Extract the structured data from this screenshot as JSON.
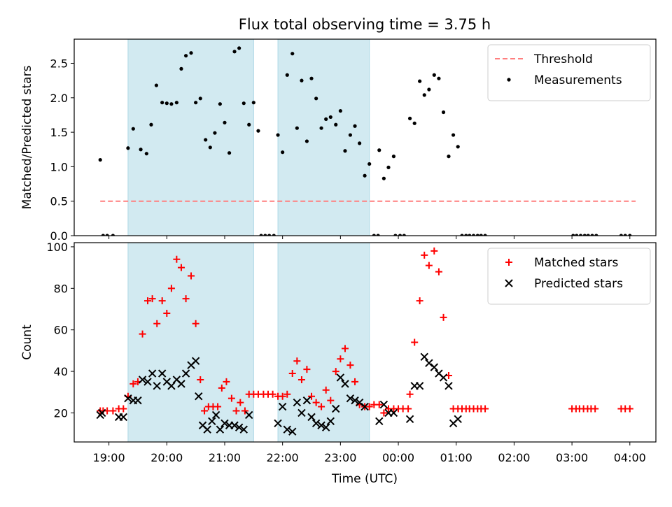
{
  "title": "Flux total observing time = 3.75 h",
  "xlabel": "Time (UTC)",
  "x_ticks": [
    "19:00",
    "20:00",
    "21:00",
    "22:00",
    "23:00",
    "00:00",
    "01:00",
    "02:00",
    "03:00",
    "04:00"
  ],
  "colors": {
    "shade": "#add8e6",
    "threshold": "#ff7f7f",
    "matched": "#ff0000",
    "predicted": "#000000",
    "measurement": "#000000"
  },
  "chart_data": [
    {
      "type": "scatter",
      "ylabel": "Matched/Predicted stars",
      "x_unit": "hours from 19:00 UTC",
      "xlim": [
        -0.6,
        9.45
      ],
      "ylim": [
        0,
        2.85
      ],
      "y_ticks": [
        "0.0",
        "0.5",
        "1.0",
        "1.5",
        "2.0",
        "2.5"
      ],
      "shaded_intervals": [
        [
          0.33,
          2.5
        ],
        [
          2.92,
          4.5
        ]
      ],
      "legend": {
        "position": "top-right",
        "entries": [
          "Threshold",
          "Measurements"
        ]
      },
      "threshold": {
        "name": "Threshold",
        "x": [
          -0.15,
          9.1
        ],
        "y": 0.5,
        "style": "dashed"
      },
      "series": [
        {
          "name": "Measurements",
          "points": [
            [
              -0.15,
              1.1
            ],
            [
              -0.1,
              0.0
            ],
            [
              -0.03,
              0.0
            ],
            [
              0.07,
              0.0
            ],
            [
              0.33,
              1.27
            ],
            [
              0.42,
              1.55
            ],
            [
              0.55,
              1.25
            ],
            [
              0.65,
              1.19
            ],
            [
              0.73,
              1.61
            ],
            [
              0.82,
              2.18
            ],
            [
              0.92,
              1.93
            ],
            [
              1.0,
              1.92
            ],
            [
              1.08,
              1.91
            ],
            [
              1.17,
              1.93
            ],
            [
              1.25,
              2.42
            ],
            [
              1.33,
              2.61
            ],
            [
              1.42,
              2.65
            ],
            [
              1.5,
              1.93
            ],
            [
              1.58,
              1.99
            ],
            [
              1.67,
              1.39
            ],
            [
              1.75,
              1.28
            ],
            [
              1.83,
              1.49
            ],
            [
              1.92,
              1.91
            ],
            [
              2.0,
              1.64
            ],
            [
              2.08,
              1.2
            ],
            [
              2.17,
              2.67
            ],
            [
              2.25,
              2.72
            ],
            [
              2.33,
              1.92
            ],
            [
              2.42,
              1.61
            ],
            [
              2.5,
              1.93
            ],
            [
              2.58,
              1.52
            ],
            [
              2.63,
              0.0
            ],
            [
              2.7,
              0.0
            ],
            [
              2.77,
              0.0
            ],
            [
              2.85,
              0.0
            ],
            [
              2.92,
              1.46
            ],
            [
              3.0,
              1.21
            ],
            [
              3.08,
              2.33
            ],
            [
              3.17,
              2.64
            ],
            [
              3.25,
              1.56
            ],
            [
              3.33,
              2.25
            ],
            [
              3.42,
              1.37
            ],
            [
              3.5,
              2.28
            ],
            [
              3.58,
              1.99
            ],
            [
              3.67,
              1.56
            ],
            [
              3.75,
              1.69
            ],
            [
              3.83,
              1.72
            ],
            [
              3.92,
              1.61
            ],
            [
              4.0,
              1.81
            ],
            [
              4.08,
              1.23
            ],
            [
              4.17,
              1.46
            ],
            [
              4.25,
              1.59
            ],
            [
              4.33,
              1.34
            ],
            [
              4.42,
              0.87
            ],
            [
              4.5,
              1.04
            ],
            [
              4.58,
              0.0
            ],
            [
              4.65,
              0.0
            ],
            [
              4.67,
              1.24
            ],
            [
              4.75,
              0.83
            ],
            [
              4.83,
              0.99
            ],
            [
              4.92,
              1.15
            ],
            [
              4.95,
              0.0
            ],
            [
              5.03,
              0.0
            ],
            [
              5.1,
              0.0
            ],
            [
              5.2,
              1.7
            ],
            [
              5.28,
              1.63
            ],
            [
              5.37,
              2.24
            ],
            [
              5.45,
              2.04
            ],
            [
              5.53,
              2.12
            ],
            [
              5.62,
              2.33
            ],
            [
              5.7,
              2.28
            ],
            [
              5.78,
              1.79
            ],
            [
              5.87,
              1.15
            ],
            [
              5.95,
              1.46
            ],
            [
              6.03,
              1.29
            ],
            [
              6.1,
              0.0
            ],
            [
              6.17,
              0.0
            ],
            [
              6.23,
              0.0
            ],
            [
              6.3,
              0.0
            ],
            [
              6.37,
              0.0
            ],
            [
              6.43,
              0.0
            ],
            [
              6.5,
              0.0
            ],
            [
              8.02,
              0.0
            ],
            [
              8.08,
              0.0
            ],
            [
              8.15,
              0.0
            ],
            [
              8.22,
              0.0
            ],
            [
              8.28,
              0.0
            ],
            [
              8.35,
              0.0
            ],
            [
              8.42,
              0.0
            ],
            [
              8.85,
              0.0
            ],
            [
              8.92,
              0.0
            ],
            [
              9.0,
              0.0
            ]
          ]
        }
      ]
    },
    {
      "type": "scatter",
      "ylabel": "Count",
      "x_unit": "hours from 19:00 UTC",
      "xlim": [
        -0.6,
        9.45
      ],
      "ylim": [
        6,
        102
      ],
      "y_ticks": [
        "20",
        "40",
        "60",
        "80",
        "100"
      ],
      "shaded_intervals": [
        [
          0.33,
          2.5
        ],
        [
          2.92,
          4.5
        ]
      ],
      "legend": {
        "position": "top-right",
        "entries": [
          "Matched stars",
          "Predicted stars"
        ]
      },
      "series": [
        {
          "name": "Matched stars",
          "marker": "plus",
          "points": [
            [
              -0.15,
              21
            ],
            [
              -0.1,
              21
            ],
            [
              -0.03,
              21
            ],
            [
              0.07,
              21
            ],
            [
              0.17,
              22
            ],
            [
              0.25,
              22
            ],
            [
              0.33,
              28
            ],
            [
              0.42,
              34
            ],
            [
              0.5,
              35
            ],
            [
              0.58,
              58
            ],
            [
              0.67,
              74
            ],
            [
              0.75,
              75
            ],
            [
              0.83,
              63
            ],
            [
              0.92,
              74
            ],
            [
              1.0,
              68
            ],
            [
              1.08,
              80
            ],
            [
              1.17,
              94
            ],
            [
              1.25,
              90
            ],
            [
              1.33,
              75
            ],
            [
              1.42,
              86
            ],
            [
              1.5,
              63
            ],
            [
              1.58,
              36
            ],
            [
              1.65,
              21
            ],
            [
              1.72,
              23
            ],
            [
              1.8,
              23
            ],
            [
              1.88,
              23
            ],
            [
              1.95,
              32
            ],
            [
              2.03,
              35
            ],
            [
              2.12,
              27
            ],
            [
              2.2,
              21
            ],
            [
              2.27,
              25
            ],
            [
              2.35,
              21
            ],
            [
              2.42,
              29
            ],
            [
              2.5,
              29
            ],
            [
              2.58,
              29
            ],
            [
              2.67,
              29
            ],
            [
              2.75,
              29
            ],
            [
              2.83,
              29
            ],
            [
              2.92,
              28
            ],
            [
              3.0,
              28
            ],
            [
              3.08,
              29
            ],
            [
              3.17,
              39
            ],
            [
              3.25,
              45
            ],
            [
              3.33,
              36
            ],
            [
              3.42,
              41
            ],
            [
              3.5,
              28
            ],
            [
              3.58,
              25
            ],
            [
              3.67,
              23
            ],
            [
              3.75,
              31
            ],
            [
              3.83,
              26
            ],
            [
              3.92,
              40
            ],
            [
              4.0,
              46
            ],
            [
              4.08,
              51
            ],
            [
              4.17,
              43
            ],
            [
              4.25,
              35
            ],
            [
              4.33,
              24
            ],
            [
              4.42,
              23
            ],
            [
              4.5,
              23
            ],
            [
              4.58,
              24
            ],
            [
              4.67,
              24
            ],
            [
              4.75,
              20
            ],
            [
              4.83,
              22
            ],
            [
              4.92,
              22
            ],
            [
              5.0,
              22
            ],
            [
              5.08,
              22
            ],
            [
              5.17,
              22
            ],
            [
              5.2,
              29
            ],
            [
              5.28,
              54
            ],
            [
              5.37,
              74
            ],
            [
              5.45,
              96
            ],
            [
              5.53,
              91
            ],
            [
              5.62,
              98
            ],
            [
              5.7,
              88
            ],
            [
              5.78,
              66
            ],
            [
              5.87,
              38
            ],
            [
              5.95,
              22
            ],
            [
              6.03,
              22
            ],
            [
              6.1,
              22
            ],
            [
              6.17,
              22
            ],
            [
              6.23,
              22
            ],
            [
              6.3,
              22
            ],
            [
              6.37,
              22
            ],
            [
              6.43,
              22
            ],
            [
              6.5,
              22
            ],
            [
              8.0,
              22
            ],
            [
              8.07,
              22
            ],
            [
              8.13,
              22
            ],
            [
              8.2,
              22
            ],
            [
              8.27,
              22
            ],
            [
              8.33,
              22
            ],
            [
              8.4,
              22
            ],
            [
              8.85,
              22
            ],
            [
              8.92,
              22
            ],
            [
              9.0,
              22
            ]
          ]
        },
        {
          "name": "Predicted stars",
          "marker": "x",
          "points": [
            [
              -0.15,
              19
            ],
            [
              -0.12,
              20
            ],
            [
              0.17,
              18
            ],
            [
              0.25,
              18
            ],
            [
              0.33,
              27
            ],
            [
              0.42,
              26
            ],
            [
              0.5,
              26
            ],
            [
              0.58,
              36
            ],
            [
              0.67,
              35
            ],
            [
              0.75,
              39
            ],
            [
              0.83,
              33
            ],
            [
              0.92,
              39
            ],
            [
              1.0,
              35
            ],
            [
              1.08,
              33
            ],
            [
              1.17,
              36
            ],
            [
              1.25,
              34
            ],
            [
              1.33,
              39
            ],
            [
              1.42,
              43
            ],
            [
              1.5,
              45
            ],
            [
              1.55,
              28
            ],
            [
              1.62,
              14
            ],
            [
              1.7,
              12
            ],
            [
              1.78,
              16
            ],
            [
              1.85,
              19
            ],
            [
              1.92,
              12
            ],
            [
              2.0,
              15
            ],
            [
              2.08,
              14
            ],
            [
              2.17,
              14
            ],
            [
              2.25,
              13
            ],
            [
              2.33,
              12
            ],
            [
              2.42,
              19
            ],
            [
              2.92,
              15
            ],
            [
              3.0,
              23
            ],
            [
              3.08,
              12
            ],
            [
              3.17,
              11
            ],
            [
              3.25,
              25
            ],
            [
              3.33,
              20
            ],
            [
              3.42,
              26
            ],
            [
              3.5,
              18
            ],
            [
              3.58,
              15
            ],
            [
              3.67,
              14
            ],
            [
              3.75,
              13
            ],
            [
              3.83,
              16
            ],
            [
              3.92,
              22
            ],
            [
              4.0,
              37
            ],
            [
              4.08,
              34
            ],
            [
              4.17,
              27
            ],
            [
              4.25,
              26
            ],
            [
              4.33,
              25
            ],
            [
              4.42,
              23
            ],
            [
              4.67,
              16
            ],
            [
              4.75,
              24
            ],
            [
              4.83,
              20
            ],
            [
              4.92,
              20
            ],
            [
              5.2,
              17
            ],
            [
              5.28,
              33
            ],
            [
              5.37,
              33
            ],
            [
              5.45,
              47
            ],
            [
              5.53,
              44
            ],
            [
              5.62,
              42
            ],
            [
              5.7,
              39
            ],
            [
              5.78,
              37
            ],
            [
              5.87,
              33
            ],
            [
              5.95,
              15
            ],
            [
              6.03,
              17
            ]
          ]
        }
      ]
    }
  ]
}
